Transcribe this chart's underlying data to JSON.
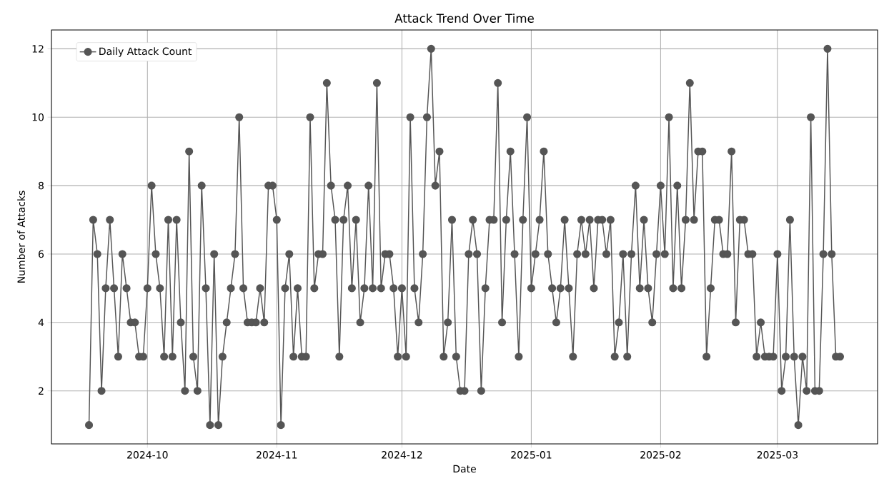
{
  "chart_data": {
    "type": "line",
    "title": "Attack Trend Over Time",
    "xlabel": "Date",
    "ylabel": "Number of Attacks",
    "x": [
      "2024-09-17",
      "2024-09-18",
      "2024-09-19",
      "2024-09-20",
      "2024-09-21",
      "2024-09-22",
      "2024-09-23",
      "2024-09-24",
      "2024-09-25",
      "2024-09-26",
      "2024-09-27",
      "2024-09-28",
      "2024-09-29",
      "2024-09-30",
      "2024-10-01",
      "2024-10-02",
      "2024-10-03",
      "2024-10-04",
      "2024-10-05",
      "2024-10-06",
      "2024-10-07",
      "2024-10-08",
      "2024-10-09",
      "2024-10-10",
      "2024-10-11",
      "2024-10-12",
      "2024-10-13",
      "2024-10-14",
      "2024-10-15",
      "2024-10-16",
      "2024-10-17",
      "2024-10-18",
      "2024-10-19",
      "2024-10-20",
      "2024-10-21",
      "2024-10-22",
      "2024-10-23",
      "2024-10-24",
      "2024-10-25",
      "2024-10-26",
      "2024-10-27",
      "2024-10-28",
      "2024-10-29",
      "2024-10-30",
      "2024-10-31",
      "2024-11-01",
      "2024-11-02",
      "2024-11-03",
      "2024-11-04",
      "2024-11-05",
      "2024-11-06",
      "2024-11-07",
      "2024-11-08",
      "2024-11-09",
      "2024-11-10",
      "2024-11-11",
      "2024-11-12",
      "2024-11-13",
      "2024-11-14",
      "2024-11-15",
      "2024-11-16",
      "2024-11-17",
      "2024-11-18",
      "2024-11-19",
      "2024-11-20",
      "2024-11-21",
      "2024-11-22",
      "2024-11-23",
      "2024-11-24",
      "2024-11-25",
      "2024-11-26",
      "2024-11-27",
      "2024-11-28",
      "2024-11-29",
      "2024-11-30",
      "2024-12-01",
      "2024-12-02",
      "2024-12-03",
      "2024-12-04",
      "2024-12-05",
      "2024-12-06",
      "2024-12-07",
      "2024-12-08",
      "2024-12-09",
      "2024-12-10",
      "2024-12-11",
      "2024-12-12",
      "2024-12-13",
      "2024-12-14",
      "2024-12-15",
      "2024-12-16",
      "2024-12-17",
      "2024-12-18",
      "2024-12-19",
      "2024-12-20",
      "2024-12-21",
      "2024-12-22",
      "2024-12-23",
      "2024-12-24",
      "2024-12-25",
      "2024-12-26",
      "2024-12-27",
      "2024-12-28",
      "2024-12-29",
      "2024-12-30",
      "2024-12-31",
      "2025-01-01",
      "2025-01-02",
      "2025-01-03",
      "2025-01-04",
      "2025-01-05",
      "2025-01-06",
      "2025-01-07",
      "2025-01-08",
      "2025-01-09",
      "2025-01-10",
      "2025-01-11",
      "2025-01-12",
      "2025-01-13",
      "2025-01-14",
      "2025-01-15",
      "2025-01-16",
      "2025-01-17",
      "2025-01-18",
      "2025-01-19",
      "2025-01-20",
      "2025-01-21",
      "2025-01-22",
      "2025-01-23",
      "2025-01-24",
      "2025-01-25",
      "2025-01-26",
      "2025-01-27",
      "2025-01-28",
      "2025-01-29",
      "2025-01-30",
      "2025-01-31",
      "2025-02-01",
      "2025-02-02",
      "2025-02-03",
      "2025-02-04",
      "2025-02-05",
      "2025-02-06",
      "2025-02-07",
      "2025-02-08",
      "2025-02-09",
      "2025-02-10",
      "2025-02-11",
      "2025-02-12",
      "2025-02-13",
      "2025-02-14",
      "2025-02-15",
      "2025-02-16",
      "2025-02-17",
      "2025-02-18",
      "2025-02-19",
      "2025-02-20",
      "2025-02-21",
      "2025-02-22",
      "2025-02-23",
      "2025-02-24",
      "2025-02-25",
      "2025-02-26",
      "2025-02-27",
      "2025-02-28",
      "2025-03-01",
      "2025-03-02",
      "2025-03-03",
      "2025-03-04",
      "2025-03-05",
      "2025-03-06",
      "2025-03-07",
      "2025-03-08",
      "2025-03-09",
      "2025-03-10",
      "2025-03-11",
      "2025-03-12",
      "2025-03-13",
      "2025-03-14",
      "2025-03-15",
      "2025-03-16"
    ],
    "series": [
      {
        "name": "Daily Attack Count",
        "color": "#555555",
        "values": [
          1,
          7,
          6,
          2,
          5,
          7,
          5,
          3,
          6,
          5,
          4,
          4,
          3,
          3,
          5,
          8,
          6,
          5,
          3,
          7,
          3,
          7,
          4,
          2,
          9,
          3,
          2,
          8,
          5,
          1,
          6,
          1,
          3,
          4,
          5,
          6,
          10,
          5,
          4,
          4,
          4,
          5,
          4,
          8,
          8,
          7,
          1,
          5,
          6,
          3,
          5,
          3,
          3,
          10,
          5,
          6,
          6,
          11,
          8,
          7,
          3,
          7,
          8,
          5,
          7,
          4,
          5,
          8,
          5,
          11,
          5,
          6,
          6,
          5,
          3,
          5,
          3,
          10,
          5,
          4,
          6,
          10,
          12,
          8,
          9,
          3,
          4,
          7,
          3,
          2,
          2,
          6,
          7,
          6,
          2,
          5,
          7,
          7,
          11,
          4,
          7,
          9,
          6,
          3,
          7,
          10,
          5,
          6,
          7,
          9,
          6,
          5,
          4,
          5,
          7,
          5,
          3,
          6,
          7,
          6,
          7,
          5,
          7,
          7,
          6,
          7,
          3,
          4,
          6,
          3,
          6,
          8,
          5,
          7,
          5,
          4,
          6,
          8,
          6,
          10,
          5,
          8,
          5,
          7,
          11,
          7,
          9,
          9,
          3,
          5,
          7,
          7,
          6,
          6,
          9,
          4,
          7,
          7,
          6,
          6,
          3,
          4,
          3,
          3,
          3,
          6,
          2,
          3,
          7,
          3,
          1,
          3,
          2,
          10,
          2,
          2,
          6,
          12,
          6,
          3,
          3
        ]
      }
    ],
    "xlim": [
      "2024-09-08",
      "2025-03-25"
    ],
    "ylim": [
      0.45,
      12.55
    ],
    "xticks": [
      "2024-10",
      "2024-11",
      "2024-12",
      "2025-01",
      "2025-02",
      "2025-03"
    ],
    "yticks": [
      2,
      4,
      6,
      8,
      10,
      12
    ],
    "grid": true,
    "legend": "top left",
    "marker": "circle",
    "line_style": "solid"
  }
}
